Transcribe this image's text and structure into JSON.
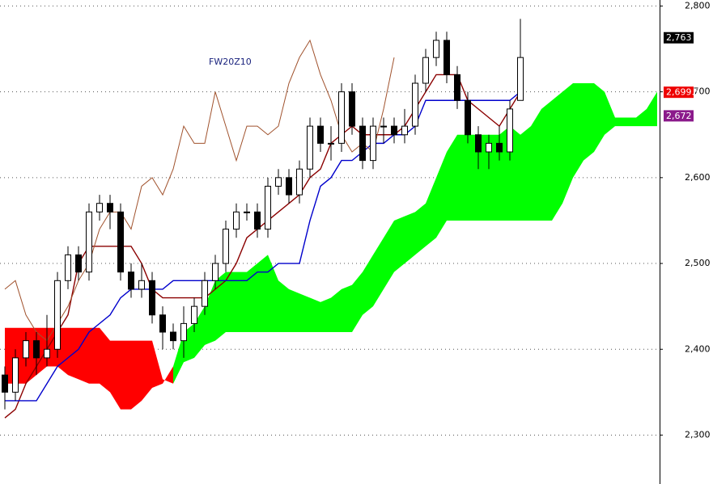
{
  "chart_data": {
    "type": "candlestick",
    "title": "FW20Z10",
    "ylim": [
      2243,
      2807
    ],
    "yticks": [
      {
        "value": 2800,
        "label": "2,800"
      },
      {
        "value": 2700,
        "label": "2,700"
      },
      {
        "value": 2600,
        "label": "2,600"
      },
      {
        "value": 2500,
        "label": "2,500"
      },
      {
        "value": 2400,
        "label": "2,400"
      },
      {
        "value": 2300,
        "label": "2,300"
      }
    ],
    "grid": true,
    "open": [
      2370,
      2350,
      2390,
      2410,
      2390,
      2400,
      2480,
      2510,
      2490,
      2560,
      2570,
      2560,
      2490,
      2470,
      2480,
      2440,
      2420,
      2410,
      2430,
      2450,
      2480,
      2500,
      2540,
      2560,
      2560,
      2540,
      2590,
      2600,
      2580,
      2610,
      2660,
      2640,
      2640,
      2700,
      2660,
      2620,
      2660,
      2660,
      2650,
      2660,
      2710,
      2740,
      2760,
      2720,
      2690,
      2650,
      2630,
      2640,
      2630,
      2690
    ],
    "high": [
      2380,
      2400,
      2420,
      2420,
      2440,
      2490,
      2520,
      2520,
      2570,
      2580,
      2580,
      2570,
      2500,
      2500,
      2490,
      2450,
      2430,
      2450,
      2460,
      2490,
      2510,
      2550,
      2570,
      2570,
      2570,
      2600,
      2610,
      2610,
      2620,
      2670,
      2670,
      2660,
      2710,
      2710,
      2670,
      2670,
      2670,
      2670,
      2680,
      2720,
      2750,
      2770,
      2770,
      2730,
      2700,
      2660,
      2650,
      2660,
      2690,
      2785
    ],
    "low": [
      2330,
      2340,
      2380,
      2370,
      2380,
      2390,
      2470,
      2480,
      2480,
      2550,
      2540,
      2480,
      2460,
      2460,
      2430,
      2400,
      2400,
      2390,
      2420,
      2440,
      2470,
      2490,
      2530,
      2550,
      2530,
      2530,
      2580,
      2570,
      2570,
      2600,
      2630,
      2620,
      2630,
      2650,
      2610,
      2610,
      2640,
      2640,
      2640,
      2650,
      2700,
      2730,
      2710,
      2680,
      2640,
      2610,
      2610,
      2620,
      2620,
      2690
    ],
    "close": [
      2350,
      2390,
      2410,
      2390,
      2400,
      2480,
      2510,
      2490,
      2560,
      2570,
      2560,
      2490,
      2470,
      2480,
      2440,
      2420,
      2410,
      2430,
      2450,
      2480,
      2500,
      2540,
      2560,
      2560,
      2540,
      2590,
      2600,
      2580,
      2610,
      2660,
      2640,
      2640,
      2700,
      2660,
      2620,
      2660,
      2660,
      2650,
      2660,
      2710,
      2740,
      2760,
      2720,
      2690,
      2650,
      2630,
      2640,
      2630,
      2680,
      2740
    ],
    "lines": [
      {
        "color": "#8b0000",
        "values": [
          2320,
          2330,
          2360,
          2380,
          2400,
          2420,
          2440,
          2500,
          2520,
          2520,
          2520,
          2520,
          2520,
          2500,
          2470,
          2460,
          2460,
          2460,
          2460,
          2460,
          2470,
          2480,
          2500,
          2530,
          2540,
          2550,
          2560,
          2570,
          2580,
          2600,
          2610,
          2640,
          2650,
          2660,
          2650,
          2650,
          2650,
          2650,
          2660,
          2680,
          2700,
          2720,
          2720,
          2720,
          2690,
          2680,
          2670,
          2660,
          2680,
          2700
        ]
      },
      {
        "color": "#0000cc",
        "values": [
          2340,
          2340,
          2340,
          2340,
          2360,
          2380,
          2390,
          2400,
          2420,
          2430,
          2440,
          2460,
          2470,
          2470,
          2470,
          2470,
          2480,
          2480,
          2480,
          2480,
          2480,
          2480,
          2480,
          2480,
          2490,
          2490,
          2500,
          2500,
          2500,
          2550,
          2590,
          2600,
          2620,
          2620,
          2630,
          2640,
          2640,
          2650,
          2650,
          2660,
          2690,
          2690,
          2690,
          2690,
          2690,
          2690,
          2690,
          2690,
          2690,
          2700
        ]
      },
      {
        "color": "#a0522d",
        "values": [
          2470,
          2480,
          2440,
          2420,
          2410,
          2430,
          2450,
          2480,
          2500,
          2540,
          2560,
          2560,
          2540,
          2590,
          2600,
          2580,
          2610,
          2660,
          2640,
          2640,
          2700,
          2660,
          2620,
          2660,
          2660,
          2650,
          2660,
          2710,
          2740,
          2760,
          2720,
          2690,
          2650,
          2630,
          2640,
          2630,
          2680,
          2740
        ]
      }
    ],
    "span_a": [
      2360,
      2360,
      2360,
      2370,
      2380,
      2380,
      2370,
      2365,
      2360,
      2360,
      2350,
      2330,
      2330,
      2340,
      2355,
      2360,
      2380,
      2420,
      2430,
      2450,
      2480,
      2490,
      2490,
      2490,
      2500,
      2510,
      2480,
      2470,
      2465,
      2460,
      2455,
      2460,
      2470,
      2475,
      2490,
      2510,
      2530,
      2550,
      2555,
      2560,
      2570,
      2600,
      2630,
      2650,
      2650,
      2650,
      2650,
      2650,
      2660,
      2650,
      2660,
      2680,
      2690,
      2700,
      2710,
      2710,
      2710,
      2700,
      2670,
      2670,
      2670,
      2680,
      2700
    ],
    "span_b": [
      2425,
      2425,
      2425,
      2425,
      2425,
      2425,
      2425,
      2425,
      2425,
      2425,
      2410,
      2410,
      2410,
      2410,
      2410,
      2365,
      2360,
      2385,
      2390,
      2405,
      2410,
      2420,
      2420,
      2420,
      2420,
      2420,
      2420,
      2420,
      2420,
      2420,
      2420,
      2420,
      2420,
      2420,
      2440,
      2450,
      2470,
      2490,
      2500,
      2510,
      2520,
      2530,
      2550,
      2550,
      2550,
      2550,
      2550,
      2550,
      2550,
      2550,
      2550,
      2550,
      2550,
      2570,
      2600,
      2620,
      2630,
      2650,
      2660,
      2660,
      2660,
      2660,
      2660
    ],
    "cloud_up_color": "#00ff00",
    "cloud_down_color": "#ff0000",
    "price_labels": [
      {
        "value": 2763,
        "label": "2,763",
        "color": "#000000"
      },
      {
        "value": 2699.5,
        "label": "2,699.5",
        "color": "#ee0000"
      },
      {
        "value": 2672,
        "label": "2,672",
        "color": "#8b1a8b"
      }
    ]
  }
}
